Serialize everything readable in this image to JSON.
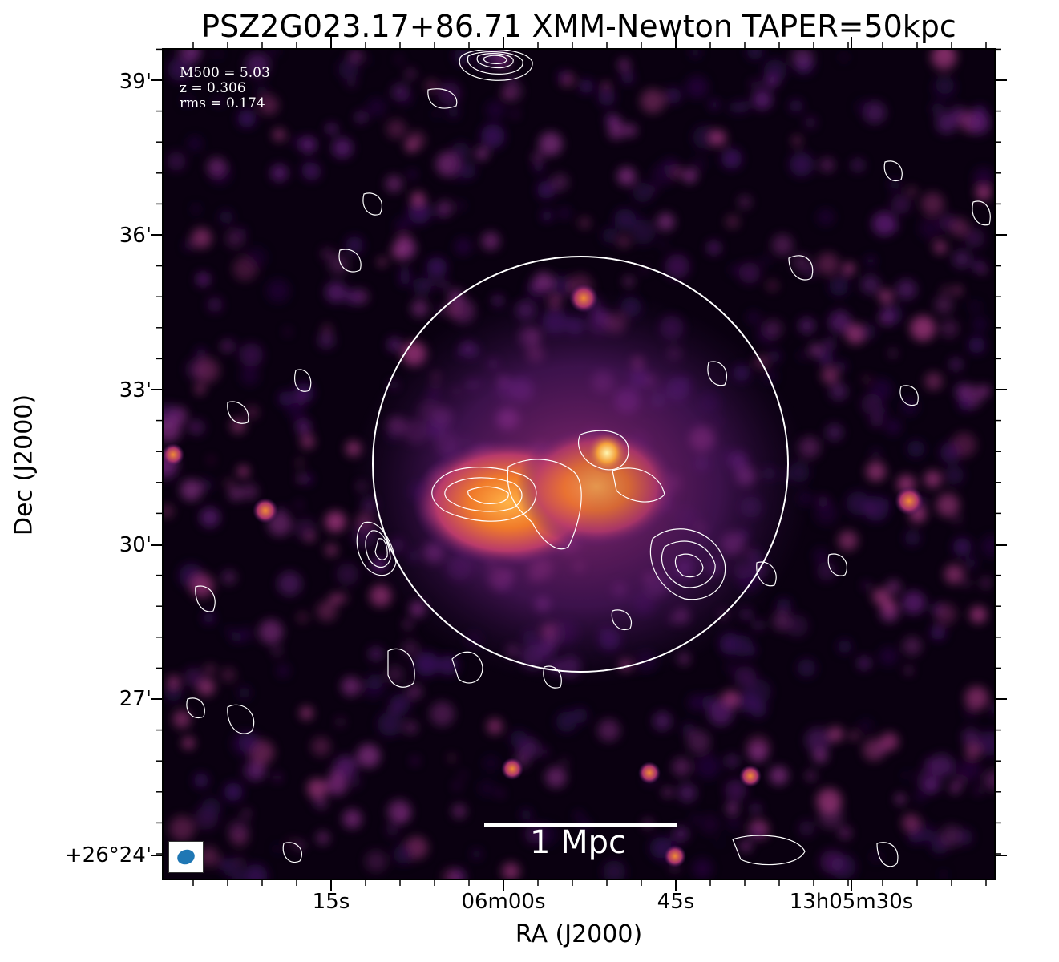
{
  "title": "PSZ2G023.17+86.71 XMM-Newton TAPER=50kpc",
  "stats": {
    "m500": "M500 = 5.03",
    "z": "z = 0.306",
    "rms": "rms = 0.174"
  },
  "axes": {
    "y_title": "Dec (J2000)",
    "x_title": "RA (J2000)",
    "y_ticks": [
      "39'",
      "36'",
      "33'",
      "30'",
      "27'",
      "+26°24'"
    ],
    "x_ticks": [
      "15s",
      "06m00s",
      "45s",
      "13h05m30s"
    ]
  },
  "scale_bar": "1 Mpc",
  "colors": {
    "background": "#0a0010",
    "contours": "#ffffff",
    "beam": "#1f77b4",
    "colormap": "inferno-like (black-purple-orange-yellow)"
  }
}
